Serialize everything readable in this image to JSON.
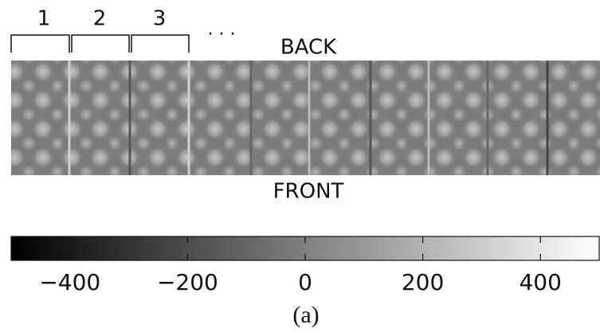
{
  "chart_data": {
    "type": "colorbar",
    "segment_labels": [
      "1",
      "2",
      "3"
    ],
    "ellipsis": "· · ·",
    "top_label": "BACK",
    "bottom_label": "FRONT",
    "caption": "(a)",
    "colormap": [
      "#000000",
      "#ffffff"
    ],
    "xlim": [
      -500,
      500
    ],
    "xticks": [
      {
        "value": -400,
        "label": "−400"
      },
      {
        "value": -200,
        "label": "−200"
      },
      0,
      200,
      400
    ]
  }
}
